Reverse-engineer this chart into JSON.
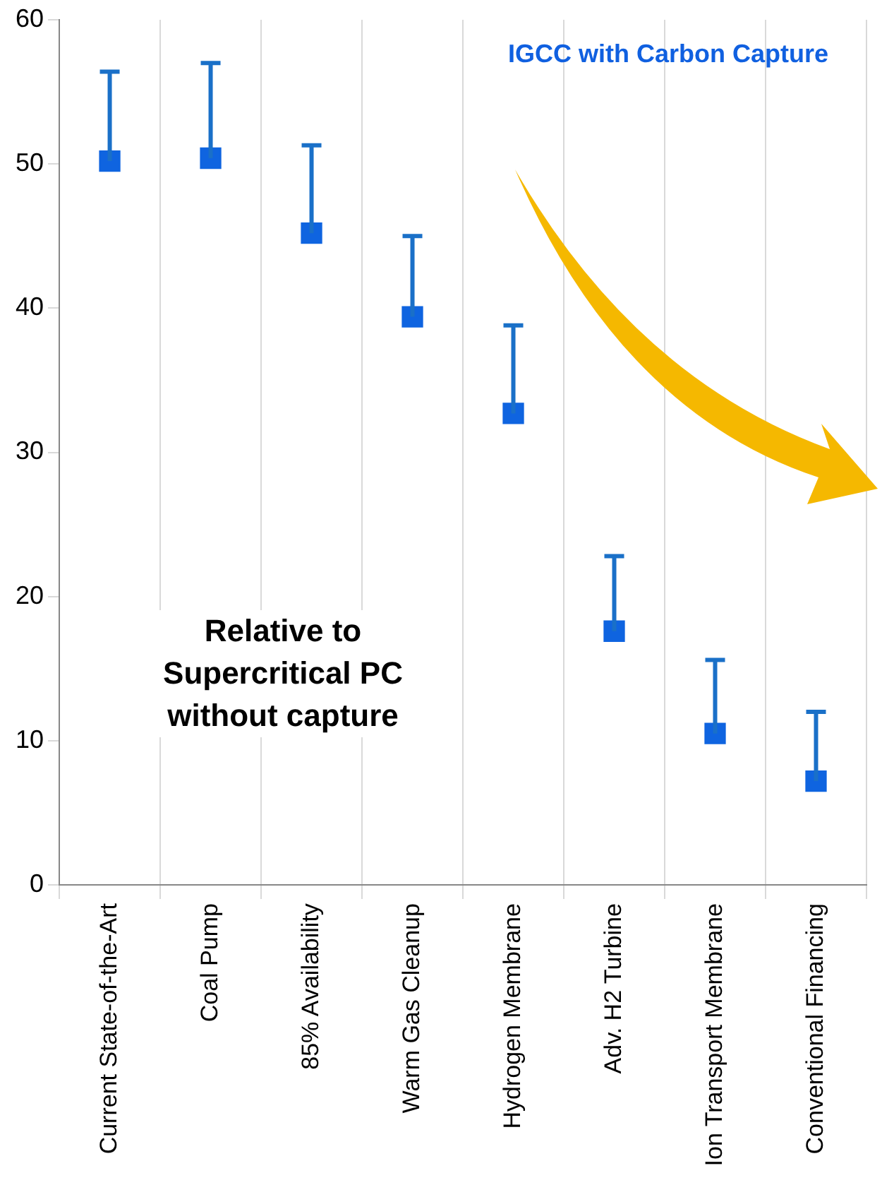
{
  "chart_data": {
    "type": "scatter",
    "title": "IGCC with Carbon Capture",
    "categories": [
      "Current State-of-the-Art",
      "Coal Pump",
      "85% Availability",
      "Warm Gas Cleanup",
      "Hydrogen Membrane",
      "Adv. H2 Turbine",
      "Ion Transport Membrane",
      "Conventional Financing"
    ],
    "values": [
      50.2,
      50.4,
      45.2,
      39.4,
      32.7,
      17.6,
      10.5,
      7.2
    ],
    "errors": [
      [
        50.2,
        56.4
      ],
      [
        50.4,
        57.0
      ],
      [
        45.2,
        51.3
      ],
      [
        39.4,
        45.0
      ],
      [
        32.7,
        38.8
      ],
      [
        17.6,
        22.8
      ],
      [
        10.5,
        15.6
      ],
      [
        7.2,
        12.0
      ]
    ],
    "color": "#0f64e0",
    "marker": "square",
    "ylim": [
      0,
      60
    ],
    "yticks": [
      0,
      10,
      20,
      30,
      40,
      50,
      60
    ],
    "grid": "x",
    "annotations": [
      "Relative to Supercritical PC without capture"
    ]
  }
}
